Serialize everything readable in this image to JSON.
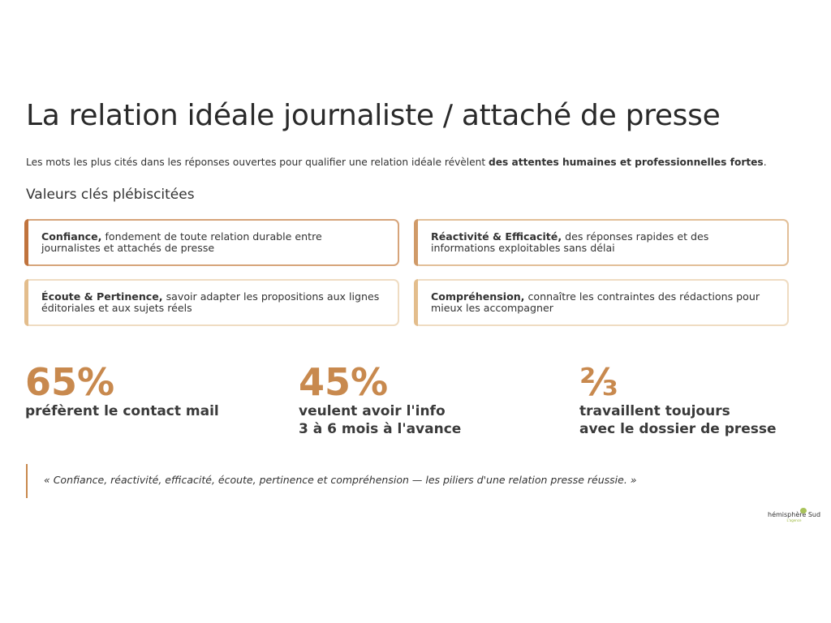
{
  "title": "La relation idéale journaliste / attaché de presse",
  "intro": {
    "text": "Les mots les plus cités dans les réponses ouvertes pour qualifier une relation idéale révèlent ",
    "bold": "des attentes humaines et professionnelles fortes",
    "end": "."
  },
  "subtitle": "Valeurs clés plébiscitées",
  "cards": [
    {
      "bold": "Confiance,",
      "text": " fondement de toute relation durable entre journalistes et attachés de presse",
      "color": "#c0733d"
    },
    {
      "bold": "Réactivité & Efficacité,",
      "text": " des réponses rapides et des informations exploitables sans délai",
      "color": "#d09a68"
    },
    {
      "bold": "Écoute & Pertinence,",
      "text": " savoir adapter les propositions aux lignes éditoriales et aux sujets réels",
      "color": "#e3bd8c"
    },
    {
      "bold": "Compréhension,",
      "text": " connaître les contraintes des rédactions pour mieux les accompagner",
      "color": "#e3bd8c"
    }
  ],
  "stats": [
    {
      "value": "65%",
      "label": "préfèrent le contact mail"
    },
    {
      "value": "45%",
      "label": "veulent avoir l'info\n3 à 6 mois à l'avance"
    },
    {
      "value": "⅔",
      "label": "travaillent toujours\navec le dossier de presse"
    }
  ],
  "quote": "« Confiance, réactivité, efficacité, écoute, pertinence et compréhension — les piliers d'une relation presse réussie. »",
  "logo": {
    "name": "hémisphère Sud",
    "tagline": "L'agence"
  },
  "colors": {
    "accent": "#c8894e"
  }
}
